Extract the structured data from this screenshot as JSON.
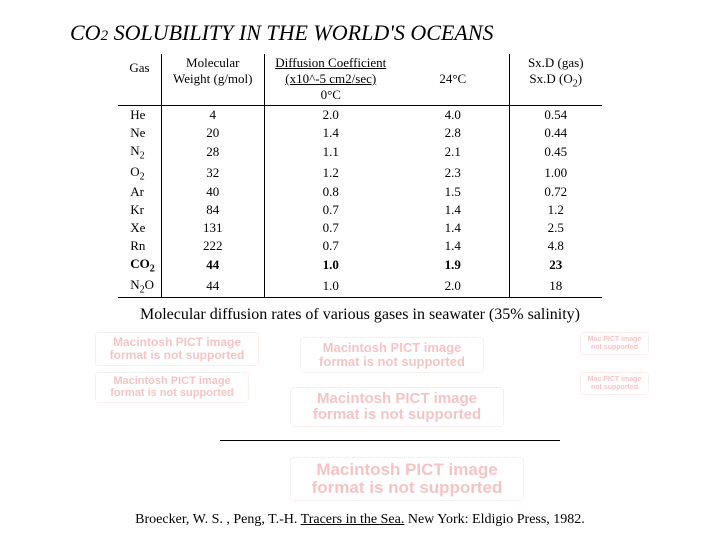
{
  "title_pre": "CO",
  "title_sub": "2",
  "title_post": " SOLUBILITY IN THE WORLD'S OCEANS",
  "headers": {
    "gas": "Gas",
    "mw1": "Molecular",
    "mw2": "Weight (g/mol)",
    "dc_span": "Diffusion Coefficient  (x10^-5 cm2/sec)",
    "dc0": "0°C",
    "dc24": "24°C",
    "sxd1": "Sx.D (gas)",
    "sxd2": "Sx.D (O",
    "sxd2_sub": "2",
    "sxd2_end": ")"
  },
  "rows": [
    {
      "gas": "He",
      "sub": "",
      "mw": "4",
      "d0": "2.0",
      "d24": "4.0",
      "sxd": "0.54",
      "bold": false
    },
    {
      "gas": "Ne",
      "sub": "",
      "mw": "20",
      "d0": "1.4",
      "d24": "2.8",
      "sxd": "0.44",
      "bold": false
    },
    {
      "gas": "N",
      "sub": "2",
      "mw": "28",
      "d0": "1.1",
      "d24": "2.1",
      "sxd": "0.45",
      "bold": false
    },
    {
      "gas": "O",
      "sub": "2",
      "mw": "32",
      "d0": "1.2",
      "d24": "2.3",
      "sxd": "1.00",
      "bold": false
    },
    {
      "gas": "Ar",
      "sub": "",
      "mw": "40",
      "d0": "0.8",
      "d24": "1.5",
      "sxd": "0.72",
      "bold": false
    },
    {
      "gas": "Kr",
      "sub": "",
      "mw": "84",
      "d0": "0.7",
      "d24": "1.4",
      "sxd": "1.2",
      "bold": false
    },
    {
      "gas": "Xe",
      "sub": "",
      "mw": "131",
      "d0": "0.7",
      "d24": "1.4",
      "sxd": "2.5",
      "bold": false
    },
    {
      "gas": "Rn",
      "sub": "",
      "mw": "222",
      "d0": "0.7",
      "d24": "1.4",
      "sxd": "4.8",
      "bold": false
    },
    {
      "gas": "CO",
      "sub": "2",
      "mw": "44",
      "d0": "1.0",
      "d24": "1.9",
      "sxd": "23",
      "bold": true
    },
    {
      "gas": "N",
      "sub": "2",
      "gas2": "O",
      "mw": "44",
      "d0": "1.0",
      "d24": "2.0",
      "sxd": "18",
      "bold": false
    }
  ],
  "caption": "Molecular diffusion rates of various gases in seawater (35% salinity)",
  "placeholder_text": "Macintosh PICT image format is not supported",
  "placeholder_short": "Mac PICT image not supported",
  "citation": {
    "authors": "Broecker, W. S. , Peng, T.-H.  ",
    "title": "Tracers in the Sea.",
    "rest": "  New York: Eldigio Press, 1982."
  }
}
